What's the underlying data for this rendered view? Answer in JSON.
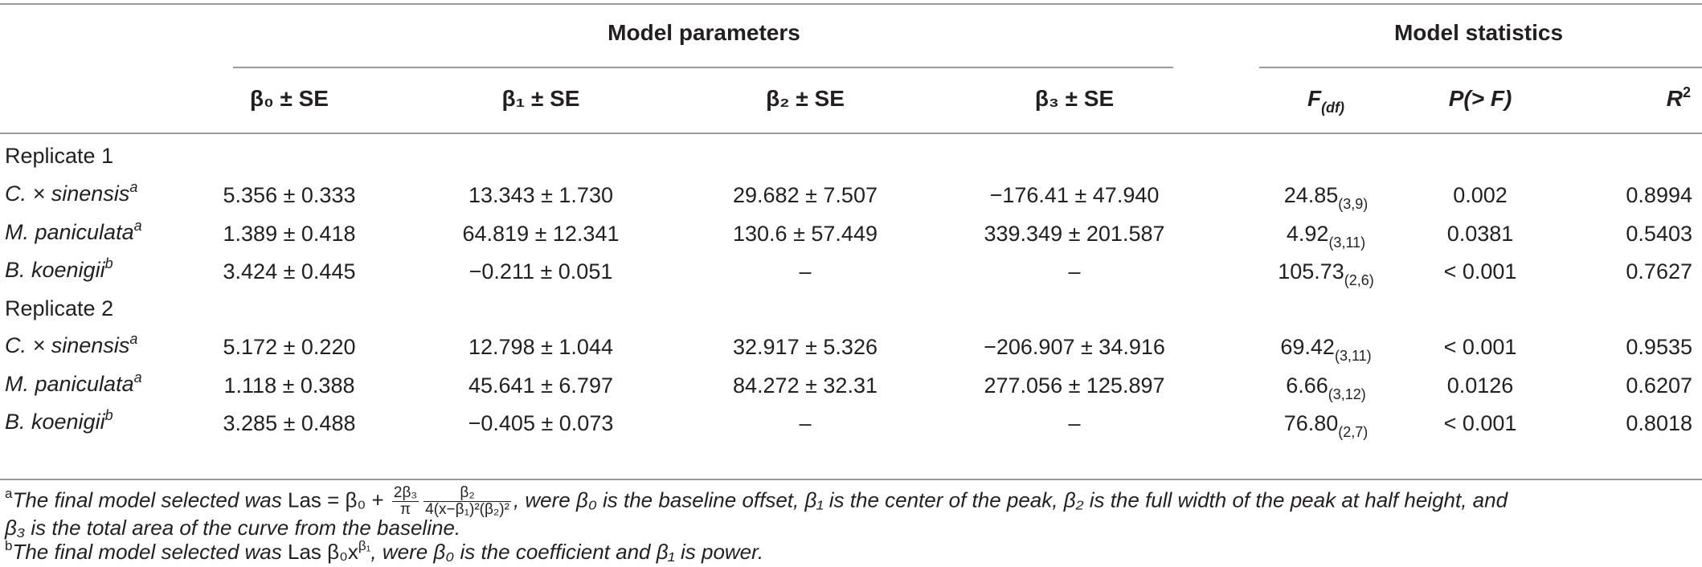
{
  "header": {
    "group_params": "Model parameters",
    "group_stats": "Model statistics",
    "columns": [
      "β₀ ± SE",
      "β₁ ± SE",
      "β₂ ± SE",
      "β₃ ± SE"
    ],
    "f_col": "F",
    "f_sub": "(df)",
    "p_col": "P(> F)",
    "r_col": "R",
    "r_sup": "2"
  },
  "groups": [
    {
      "label": "Replicate 1",
      "rows": [
        {
          "species": "C. × sinensis",
          "mark": "a",
          "b0": "5.356 ± 0.333",
          "b1": "13.343 ± 1.730",
          "b2": "29.682 ± 7.507",
          "b3": "−176.41 ± 47.940",
          "f": "24.85",
          "df": "(3,9)",
          "p": "0.002",
          "r2": "0.8994"
        },
        {
          "species": "M. paniculata",
          "mark": "a",
          "b0": "1.389 ± 0.418",
          "b1": "64.819 ± 12.341",
          "b2": "130.6 ± 57.449",
          "b3": "339.349 ± 201.587",
          "f": "4.92",
          "df": "(3,11)",
          "p": "0.0381",
          "r2": "0.5403"
        },
        {
          "species": "B. koenigii",
          "mark": "b",
          "b0": "3.424 ± 0.445",
          "b1": "−0.211 ± 0.051",
          "b2": "–",
          "b3": "–",
          "f": "105.73",
          "df": "(2,6)",
          "p": "< 0.001",
          "r2": "0.7627"
        }
      ]
    },
    {
      "label": "Replicate 2",
      "rows": [
        {
          "species": "C. × sinensis",
          "mark": "a",
          "b0": "5.172 ± 0.220",
          "b1": "12.798 ± 1.044",
          "b2": "32.917 ± 5.326",
          "b3": "−206.907 ± 34.916",
          "f": "69.42",
          "df": "(3,11)",
          "p": "< 0.001",
          "r2": "0.9535"
        },
        {
          "species": "M. paniculata",
          "mark": "a",
          "b0": "1.118 ± 0.388",
          "b1": "45.641 ± 6.797",
          "b2": "84.272 ± 32.31",
          "b3": "277.056 ± 125.897",
          "f": "6.66",
          "df": "(3,12)",
          "p": "0.0126",
          "r2": "0.6207"
        },
        {
          "species": "B. koenigii",
          "mark": "b",
          "b0": "3.285 ± 0.488",
          "b1": "−0.405 ± 0.073",
          "b2": "–",
          "b3": "–",
          "f": "76.80",
          "df": "(2,7)",
          "p": "< 0.001",
          "r2": "0.8018"
        }
      ]
    }
  ],
  "footnotes": {
    "a": {
      "mark": "a",
      "lead": "The final model selected was ",
      "las_eq": "Las = β₀ + ",
      "f1_num": "2β₃",
      "f1_den": "π",
      "f2_num": "β₂",
      "f2_den": "4(x−β₁)²(β₂)²",
      "rest": ", were β₀ is the baseline offset, β₁ is the center of the peak, β₂ is the full width of the peak at half height, and",
      "line2": "β₃ is the total area of the curve from the baseline."
    },
    "b": {
      "mark": "b",
      "lead": "The final model selected was ",
      "las": "Las  β₀x",
      "exp": "β₁",
      "rest": ", were β₀ is the coefficient and β₁ is power."
    }
  }
}
